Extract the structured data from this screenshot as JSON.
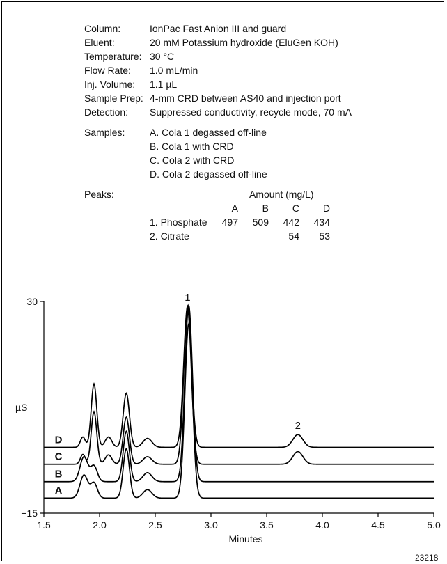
{
  "conditions": [
    {
      "label": "Column:",
      "value": "IonPac Fast Anion III and guard"
    },
    {
      "label": "Eluent:",
      "value": "20 mM Potassium hydroxide (EluGen KOH)"
    },
    {
      "label": "Temperature:",
      "value": "30 °C"
    },
    {
      "label": "Flow Rate:",
      "value": "1.0 mL/min"
    },
    {
      "label": "Inj. Volume:",
      "value": "1.1 µL"
    },
    {
      "label": "Sample Prep:",
      "value": "4-mm CRD between AS40 and injection port"
    },
    {
      "label": "Detection:",
      "value": "Suppressed conductivity, recycle mode, 70 mA"
    }
  ],
  "samples": {
    "label": "Samples:",
    "items": [
      "A. Cola 1 degassed off-line",
      "B. Cola 1 with CRD",
      "C. Cola 2 with CRD",
      "D. Cola 2 degassed off-line"
    ]
  },
  "peaks_table": {
    "label": "Peaks:",
    "amount_header": "Amount (mg/L)",
    "columns": [
      "A",
      "B",
      "C",
      "D"
    ],
    "rows": [
      {
        "name": "1. Phosphate",
        "values": [
          "497",
          "509",
          "442",
          "434"
        ]
      },
      {
        "name": "2. Citrate",
        "values": [
          "—",
          "—",
          "54",
          "53"
        ]
      }
    ]
  },
  "chart_data": {
    "type": "line",
    "xlabel": "Minutes",
    "ylabel": "µS",
    "xlim": [
      1.5,
      5.0
    ],
    "ylim": [
      -15,
      30
    ],
    "x_ticks": [
      "1.5",
      "2.0",
      "2.5",
      "3.0",
      "3.5",
      "4.0",
      "4.5",
      "5.0"
    ],
    "y_ticks": [
      "30",
      "−15"
    ],
    "peak_labels": [
      {
        "label": "1",
        "x": 2.79
      },
      {
        "label": "2",
        "x": 3.78
      }
    ],
    "series": [
      {
        "name": "A",
        "baseline": -11.8,
        "peaks": [
          [
            1.86,
            4.9,
            0.035
          ],
          [
            1.95,
            3.2,
            0.03
          ],
          [
            2.24,
            10.5,
            0.028
          ],
          [
            2.43,
            1.8,
            0.04
          ],
          [
            2.8,
            37.0,
            0.034
          ]
        ]
      },
      {
        "name": "B",
        "baseline": -8.3,
        "peaks": [
          [
            1.86,
            5.3,
            0.035
          ],
          [
            1.95,
            3.3,
            0.03
          ],
          [
            2.24,
            10.7,
            0.028
          ],
          [
            2.43,
            1.9,
            0.04
          ],
          [
            2.8,
            37.5,
            0.034
          ]
        ]
      },
      {
        "name": "C",
        "baseline": -4.6,
        "peaks": [
          [
            1.85,
            2.1,
            0.022
          ],
          [
            1.95,
            11.2,
            0.025
          ],
          [
            2.08,
            2.0,
            0.03
          ],
          [
            2.24,
            10.0,
            0.028
          ],
          [
            2.43,
            1.6,
            0.04
          ],
          [
            2.79,
            33.0,
            0.034
          ],
          [
            3.78,
            2.7,
            0.045
          ]
        ]
      },
      {
        "name": "D",
        "baseline": -1.0,
        "peaks": [
          [
            1.85,
            2.2,
            0.022
          ],
          [
            1.95,
            13.5,
            0.025
          ],
          [
            2.08,
            2.2,
            0.03
          ],
          [
            2.24,
            11.5,
            0.028
          ],
          [
            2.43,
            1.9,
            0.04
          ],
          [
            2.79,
            30.0,
            0.034
          ],
          [
            3.78,
            2.7,
            0.045
          ]
        ]
      }
    ]
  },
  "figure_number": "23218"
}
